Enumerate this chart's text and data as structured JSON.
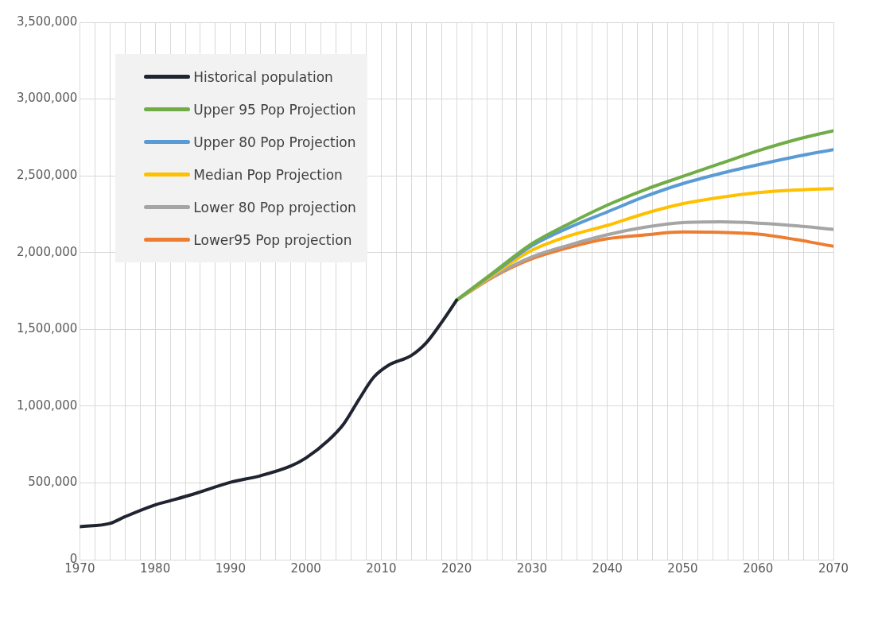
{
  "chart_data": {
    "type": "line",
    "xlim": [
      1970,
      2070
    ],
    "ylim": [
      0,
      3500000
    ],
    "xticks": [
      1970,
      {
        "value": 1972,
        "label": null
      },
      {
        "value": 1974,
        "label": null
      },
      {
        "value": 1976,
        "label": null
      },
      {
        "value": 1978,
        "label": null
      },
      1980,
      {
        "value": 1982,
        "label": null
      },
      {
        "value": 1984,
        "label": null
      },
      {
        "value": 1986,
        "label": null
      },
      {
        "value": 1988,
        "label": null
      },
      1990,
      {
        "value": 1992,
        "label": null
      },
      {
        "value": 1994,
        "label": null
      },
      {
        "value": 1996,
        "label": null
      },
      {
        "value": 1998,
        "label": null
      },
      2000,
      {
        "value": 2002,
        "label": null
      },
      {
        "value": 2004,
        "label": null
      },
      {
        "value": 2006,
        "label": null
      },
      {
        "value": 2008,
        "label": null
      },
      2010,
      {
        "value": 2012,
        "label": null
      },
      {
        "value": 2014,
        "label": null
      },
      {
        "value": 2016,
        "label": null
      },
      {
        "value": 2018,
        "label": null
      },
      2020,
      {
        "value": 2022,
        "label": null
      },
      {
        "value": 2024,
        "label": null
      },
      {
        "value": 2026,
        "label": null
      },
      {
        "value": 2028,
        "label": null
      },
      2030,
      {
        "value": 2032,
        "label": null
      },
      {
        "value": 2034,
        "label": null
      },
      {
        "value": 2036,
        "label": null
      },
      {
        "value": 2038,
        "label": null
      },
      2040,
      {
        "value": 2042,
        "label": null
      },
      {
        "value": 2044,
        "label": null
      },
      {
        "value": 2046,
        "label": null
      },
      {
        "value": 2048,
        "label": null
      },
      2050,
      {
        "value": 2052,
        "label": null
      },
      {
        "value": 2054,
        "label": null
      },
      {
        "value": 2056,
        "label": null
      },
      {
        "value": 2058,
        "label": null
      },
      2060,
      {
        "value": 2062,
        "label": null
      },
      {
        "value": 2064,
        "label": null
      },
      {
        "value": 2066,
        "label": null
      },
      {
        "value": 2068,
        "label": null
      },
      2070
    ],
    "yticks": [
      {
        "value": 0,
        "label": "0"
      },
      {
        "value": 500000,
        "label": "500,000"
      },
      {
        "value": 1000000,
        "label": "1,000,000"
      },
      {
        "value": 1500000,
        "label": "1,500,000"
      },
      {
        "value": 2000000,
        "label": "2,000,000"
      },
      {
        "value": 2500000,
        "label": "2,500,000"
      },
      {
        "value": 3000000,
        "label": "3,000,000"
      },
      {
        "value": 3500000,
        "label": "3,500,000"
      }
    ],
    "grid": true,
    "legend": "top left",
    "marker": "none",
    "line_style": "solid",
    "series": [
      {
        "name": "Historical population",
        "color": "#1f2430",
        "x": [
          1970,
          1974,
          1976,
          1980,
          1982,
          1985,
          1990,
          1994,
          1998,
          2000,
          2003,
          2005,
          2007,
          2009,
          2011,
          2014,
          2016,
          2018,
          2020
        ],
        "values": [
          215000,
          236000,
          280000,
          357000,
          384000,
          426000,
          504000,
          547000,
          610000,
          662000,
          778000,
          883000,
          1040000,
          1188000,
          1267000,
          1330000,
          1414000,
          1545000,
          1690000
        ]
      },
      {
        "name": "Upper 95 Pop Projection",
        "color": "#70ad47",
        "x": [
          2020,
          2025,
          2030,
          2035,
          2040,
          2045,
          2050,
          2055,
          2060,
          2065,
          2070
        ],
        "values": [
          1690000,
          1875000,
          2058000,
          2190000,
          2309000,
          2410000,
          2496000,
          2580000,
          2663000,
          2735000,
          2794000
        ]
      },
      {
        "name": "Upper 80 Pop Projection",
        "color": "#5b9bd5",
        "x": [
          2020,
          2025,
          2030,
          2035,
          2040,
          2045,
          2050,
          2055,
          2060,
          2065,
          2070
        ],
        "values": [
          1690000,
          1870000,
          2045000,
          2165000,
          2265000,
          2365000,
          2449000,
          2515000,
          2572000,
          2625000,
          2671000
        ]
      },
      {
        "name": "Median Pop Projection",
        "color": "#ffc000",
        "x": [
          2020,
          2025,
          2030,
          2035,
          2040,
          2045,
          2050,
          2055,
          2060,
          2065,
          2070
        ],
        "values": [
          1690000,
          1860000,
          2015000,
          2110000,
          2177000,
          2255000,
          2318000,
          2360000,
          2391000,
          2408000,
          2417000
        ]
      },
      {
        "name": "Lower 80 Pop projection",
        "color": "#a5a5a5",
        "x": [
          2020,
          2025,
          2030,
          2035,
          2040,
          2045,
          2050,
          2055,
          2060,
          2065,
          2070
        ],
        "values": [
          1690000,
          1850000,
          1972000,
          2050000,
          2116000,
          2165000,
          2195000,
          2200000,
          2192000,
          2175000,
          2151000
        ]
      },
      {
        "name": "Lower95 Pop projection",
        "color": "#ed7d31",
        "x": [
          2020,
          2025,
          2030,
          2035,
          2040,
          2045,
          2050,
          2055,
          2060,
          2065,
          2070
        ],
        "values": [
          1690000,
          1845000,
          1960000,
          2035000,
          2090000,
          2115000,
          2134000,
          2132000,
          2120000,
          2085000,
          2041000
        ]
      }
    ]
  }
}
